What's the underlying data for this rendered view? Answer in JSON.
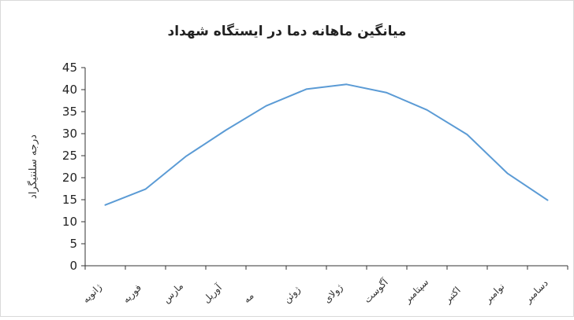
{
  "chart_data": {
    "type": "line",
    "title": "میانگین ماهانه دما در ایستگاه شهداد",
    "ylabel": "درجه سلنتیگراد",
    "xlabel": "",
    "ylim": [
      0,
      45
    ],
    "yticks": [
      0,
      5,
      10,
      15,
      20,
      25,
      30,
      35,
      40,
      45
    ],
    "grid": false,
    "legend": "none",
    "line_color": "#5b9bd5",
    "categories": [
      "ژانویه",
      "فوریه",
      "مارس",
      "آوریل",
      "مه",
      "ژوئن",
      "ژولای",
      "آگوست",
      "سپتامبر",
      "اکتبر",
      "نوامبر",
      "دسامبر"
    ],
    "series": [
      {
        "values": [
          13.8,
          17.4,
          24.8,
          30.8,
          36.3,
          40.1,
          41.2,
          39.3,
          35.4,
          29.8,
          21.0,
          14.9
        ]
      }
    ]
  }
}
